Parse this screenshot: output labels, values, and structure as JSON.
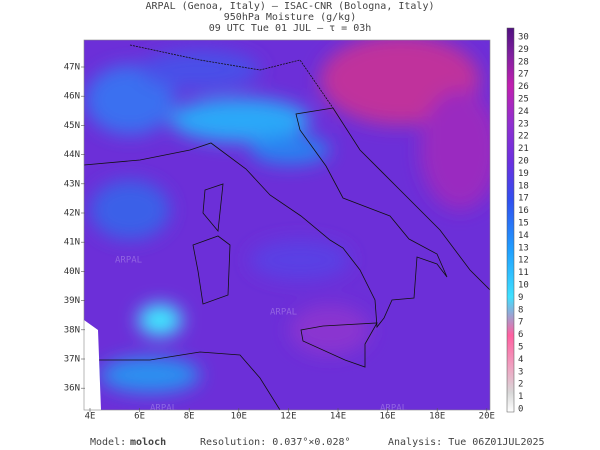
{
  "header": {
    "line1": "ARPAL (Genoa, Italy)  —  ISAC-CNR (Bologna, Italy)",
    "line2": "950hPa Moisture (g/kg)",
    "line3": "09 UTC Tue 01 JUL  —  τ = 03h"
  },
  "map": {
    "lat_labels": [
      "47N",
      "46N",
      "45N",
      "44N",
      "43N",
      "42N",
      "41N",
      "40N",
      "39N",
      "38N",
      "37N",
      "36N"
    ],
    "lon_labels": [
      "4E",
      "6E",
      "8E",
      "10E",
      "12E",
      "14E",
      "16E",
      "18E",
      "20E"
    ],
    "watermark": "ARPAL"
  },
  "colorbar": {
    "labels": [
      0,
      1,
      2,
      3,
      4,
      5,
      6,
      7,
      8,
      9,
      10,
      11,
      12,
      13,
      14,
      15,
      16,
      17,
      18,
      19,
      20,
      21,
      22,
      23,
      24,
      25,
      26,
      27,
      28,
      29,
      30
    ]
  },
  "footer": {
    "model_label": "Model:",
    "model": "moloch",
    "resolution": "Resolution: 0.037°×0.028°",
    "analysis": "Analysis: Tue 06Z01JUL2025"
  }
}
